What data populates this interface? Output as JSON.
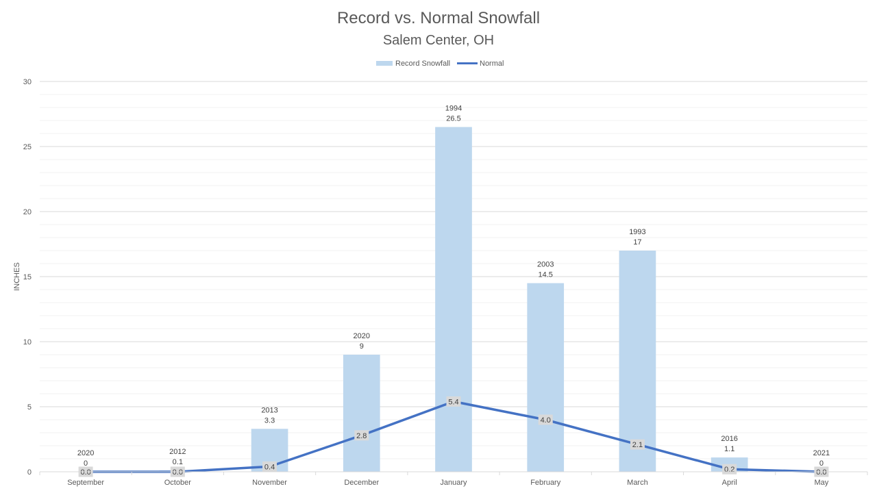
{
  "chart_data": {
    "type": "bar",
    "title": "Record vs. Normal Snowfall",
    "subtitle": "Salem Center, OH",
    "ylabel": "INCHES",
    "xlabel": "",
    "ylim": [
      0,
      30
    ],
    "yticks": [
      0,
      5,
      10,
      15,
      20,
      25,
      30
    ],
    "grid": true,
    "legend_position": "top",
    "categories": [
      "September",
      "October",
      "November",
      "December",
      "January",
      "February",
      "March",
      "April",
      "May"
    ],
    "series": [
      {
        "name": "Record Snowfall",
        "type": "bar",
        "color": "#BDD7EE",
        "values": [
          0,
          0.1,
          3.3,
          9,
          26.5,
          14.5,
          17,
          1.1,
          0
        ],
        "years": [
          "2020",
          "2012",
          "2013",
          "2020",
          "1994",
          "2003",
          "1993",
          "2016",
          "2021"
        ],
        "value_labels": [
          "0",
          "0.1",
          "3.3",
          "9",
          "26.5",
          "14.5",
          "17",
          "1.1",
          "0"
        ]
      },
      {
        "name": "Normal",
        "type": "line",
        "color": "#4472C4",
        "values": [
          0.0,
          0.0,
          0.4,
          2.8,
          5.4,
          4.0,
          2.1,
          0.2,
          0.0
        ],
        "value_labels": [
          "0.0",
          "0.0",
          "0.4",
          "2.8",
          "5.4",
          "4.0",
          "2.1",
          "0.2",
          "0.0"
        ]
      }
    ]
  }
}
